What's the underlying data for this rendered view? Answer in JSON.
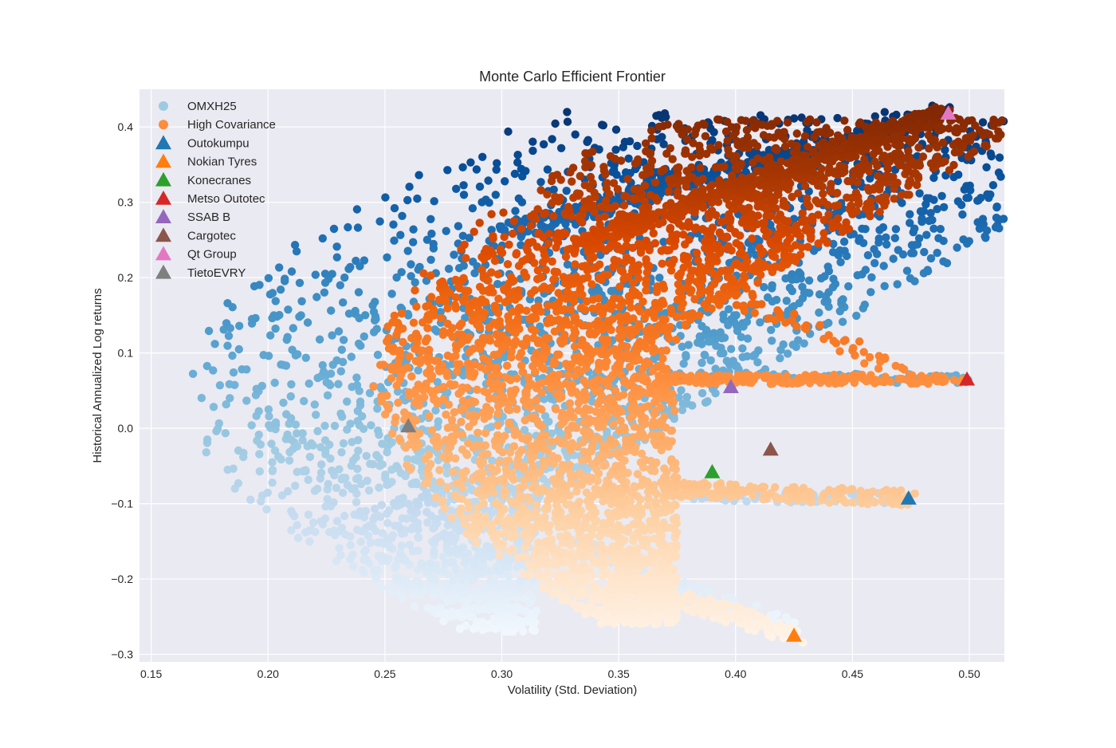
{
  "chart_data": {
    "type": "scatter",
    "title": "Monte Carlo Efficient Frontier",
    "xlabel": "Volatility (Std. Deviation)",
    "ylabel": "Historical Annualized Log returns",
    "xlim": [
      0.145,
      0.515
    ],
    "ylim": [
      -0.31,
      0.45
    ],
    "x_ticks": [
      "0.15",
      "0.20",
      "0.25",
      "0.30",
      "0.35",
      "0.40",
      "0.45",
      "0.50"
    ],
    "y_ticks": [
      "−0.3",
      "−0.2",
      "−0.1",
      "0.0",
      "0.1",
      "0.2",
      "0.3",
      "0.4"
    ],
    "grid": true,
    "legend_position": "top-left",
    "series": [
      {
        "name": "OMXH25",
        "marker": "circle",
        "legend_color": "#9ecae1",
        "colormap": "Blues",
        "min_volatility_point": [
          0.165,
          0.05
        ],
        "max_return_point": [
          0.49,
          0.42
        ],
        "min_return_point": [
          0.425,
          -0.27
        ]
      },
      {
        "name": "High Covariance",
        "marker": "circle",
        "legend_color": "#fd8d3c",
        "colormap": "Oranges",
        "min_volatility_point": [
          0.245,
          0.06
        ],
        "max_return_point": [
          0.49,
          0.42
        ],
        "min_return_point": [
          0.425,
          -0.27
        ]
      }
    ],
    "assets": [
      {
        "name": "Outokumpu",
        "x": 0.474,
        "y": -0.093,
        "color": "#1f77b4"
      },
      {
        "name": "Nokian Tyres",
        "x": 0.425,
        "y": -0.275,
        "color": "#ff7f0e"
      },
      {
        "name": "Konecranes",
        "x": 0.39,
        "y": -0.058,
        "color": "#2ca02c"
      },
      {
        "name": "Metso Outotec",
        "x": 0.499,
        "y": 0.065,
        "color": "#d62728"
      },
      {
        "name": "SSAB B",
        "x": 0.398,
        "y": 0.055,
        "color": "#9467bd"
      },
      {
        "name": "Cargotec",
        "x": 0.415,
        "y": -0.028,
        "color": "#8c564b"
      },
      {
        "name": "Qt Group",
        "x": 0.491,
        "y": 0.418,
        "color": "#e377c2"
      },
      {
        "name": "TietoEVRY",
        "x": 0.26,
        "y": 0.003,
        "color": "#7f7f7f"
      }
    ]
  }
}
